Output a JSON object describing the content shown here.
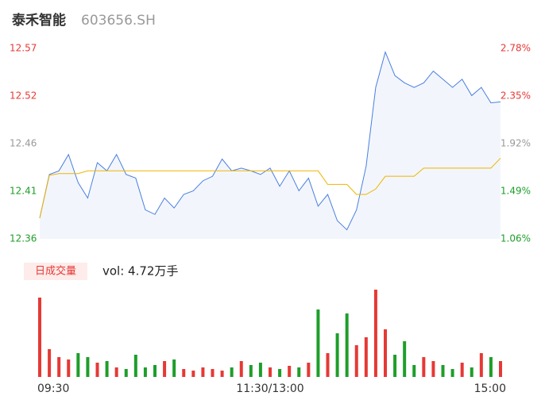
{
  "chart_data": [
    {
      "type": "line",
      "title": "泰禾智能",
      "subtitle": "603656.SH",
      "ylim": [
        12.36,
        12.57
      ],
      "yticks": [
        12.36,
        {
          "value": 12.4125,
          "label": "12.41"
        },
        {
          "value": 12.465,
          "label": "12.46"
        },
        {
          "value": 12.5175,
          "label": "12.52"
        },
        12.57
      ],
      "y2lim": [
        1.06,
        2.78
      ],
      "y2ticks": [
        {
          "value": 1.06,
          "label": "1.06%"
        },
        {
          "value": 1.49,
          "label": "1.49%"
        },
        {
          "value": 1.92,
          "label": "1.92%"
        },
        {
          "value": 2.35,
          "label": "2.35%"
        },
        {
          "value": 2.78,
          "label": "2.78%"
        }
      ],
      "series": [
        {
          "color": "#4a7fe0",
          "values": [
            12.383,
            12.431,
            12.435,
            12.453,
            12.422,
            12.405,
            12.444,
            12.435,
            12.453,
            12.431,
            12.427,
            12.392,
            12.387,
            12.405,
            12.394,
            12.409,
            12.413,
            12.424,
            12.429,
            12.448,
            12.435,
            12.438,
            12.435,
            12.431,
            12.438,
            12.418,
            12.435,
            12.413,
            12.427,
            12.396,
            12.409,
            12.38,
            12.37,
            12.392,
            12.44,
            12.527,
            12.566,
            12.54,
            12.532,
            12.527,
            12.532,
            12.545,
            12.536,
            12.527,
            12.536,
            12.518,
            12.527,
            12.51,
            12.511
          ]
        },
        {
          "color": "#f0b400",
          "values": [
            12.383,
            12.43,
            12.432,
            12.432,
            12.432,
            12.435,
            12.435,
            12.435,
            12.435,
            12.435,
            12.435,
            12.435,
            12.435,
            12.435,
            12.435,
            12.435,
            12.435,
            12.435,
            12.435,
            12.435,
            12.435,
            12.435,
            12.435,
            12.435,
            12.435,
            12.435,
            12.435,
            12.435,
            12.435,
            12.435,
            12.42,
            12.42,
            12.42,
            12.409,
            12.409,
            12.415,
            12.429,
            12.429,
            12.429,
            12.429,
            12.438,
            12.438,
            12.438,
            12.438,
            12.438,
            12.438,
            12.438,
            12.438,
            12.449
          ]
        }
      ]
    },
    {
      "type": "bar",
      "legend": "日成交量",
      "annotation": "vol: 4.72万手",
      "up_color": "#e53935",
      "down_color": "#1e9e2a",
      "categories": [
        "09:30",
        null,
        null,
        null,
        null,
        null,
        null,
        null,
        null,
        null,
        null,
        null,
        null,
        null,
        null,
        null,
        null,
        null,
        null,
        null,
        null,
        null,
        null,
        null,
        "11:30/13:00",
        null,
        null,
        null,
        null,
        null,
        null,
        null,
        null,
        null,
        null,
        null,
        null,
        null,
        null,
        null,
        null,
        null,
        null,
        null,
        null,
        null,
        null,
        null,
        "15:00"
      ],
      "ylim": [
        0,
        110
      ],
      "values": [
        100,
        35,
        25,
        22,
        30,
        25,
        18,
        20,
        12,
        10,
        28,
        12,
        15,
        20,
        22,
        10,
        8,
        12,
        10,
        8,
        12,
        20,
        15,
        18,
        12,
        10,
        14,
        12,
        18,
        85,
        30,
        55,
        80,
        40,
        50,
        110,
        60,
        28,
        45,
        15,
        25,
        20,
        15,
        10,
        18,
        12,
        30,
        25,
        20
      ]
    }
  ]
}
